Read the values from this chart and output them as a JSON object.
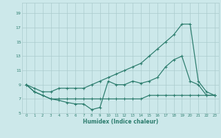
{
  "xlabel": "Humidex (Indice chaleur)",
  "bg_color": "#cce8ea",
  "grid_color": "#aacbcc",
  "line_color": "#2d7d6e",
  "xlim": [
    -0.5,
    23.5
  ],
  "ylim": [
    5,
    20.5
  ],
  "yticks": [
    5,
    7,
    9,
    11,
    13,
    15,
    17,
    19
  ],
  "xticks": [
    0,
    1,
    2,
    3,
    4,
    5,
    6,
    7,
    8,
    9,
    10,
    11,
    12,
    13,
    14,
    15,
    16,
    17,
    18,
    19,
    20,
    21,
    22,
    23
  ],
  "curve1_x": [
    0,
    1,
    2,
    3,
    4,
    5,
    6,
    7,
    8,
    9,
    10,
    11,
    12,
    13,
    14,
    15,
    16,
    17,
    18,
    19,
    20,
    21,
    22,
    23
  ],
  "curve1_y": [
    9,
    8,
    7.5,
    7,
    6.8,
    6.5,
    6.3,
    6.3,
    5.5,
    5.8,
    9.5,
    9.0,
    9.0,
    9.5,
    9.2,
    9.5,
    10,
    11.5,
    12.5,
    13,
    9.5,
    9.0,
    7.5,
    7.5
  ],
  "curve2_x": [
    0,
    1,
    2,
    3,
    4,
    5,
    6,
    7,
    8,
    9,
    10,
    11,
    12,
    13,
    14,
    15,
    16,
    17,
    18,
    19,
    20,
    21,
    22,
    23
  ],
  "curve2_y": [
    9,
    8.5,
    8,
    8,
    8.5,
    8.5,
    8.5,
    8.5,
    9,
    9.5,
    10,
    10.5,
    11,
    11.5,
    12,
    13,
    14,
    15,
    16,
    17.5,
    17.5,
    9.5,
    8,
    7.5
  ],
  "curve3_x": [
    0,
    1,
    2,
    3,
    4,
    5,
    6,
    7,
    8,
    9,
    10,
    11,
    12,
    13,
    14,
    15,
    16,
    17,
    18,
    19,
    20,
    21,
    22,
    23
  ],
  "curve3_y": [
    9,
    8,
    7.5,
    7,
    7,
    7,
    7,
    7,
    7,
    7,
    7,
    7,
    7,
    7,
    7,
    7.5,
    7.5,
    7.5,
    7.5,
    7.5,
    7.5,
    7.5,
    7.5,
    7.5
  ]
}
